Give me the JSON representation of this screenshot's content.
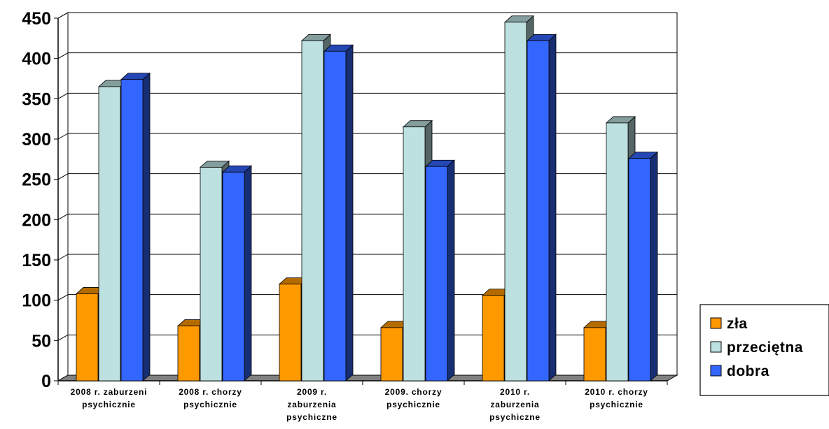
{
  "chart_data": {
    "type": "bar",
    "title": "",
    "xlabel": "",
    "ylabel": "",
    "ylim": [
      0,
      450
    ],
    "y_ticks": [
      "0",
      "50",
      "100",
      "150",
      "200",
      "250",
      "300",
      "350",
      "400",
      "450"
    ],
    "grid": true,
    "three_d": true,
    "legend_position": "right",
    "categories": [
      [
        "2008 r. zaburzeni",
        "psychicznie"
      ],
      [
        "2008 r. chorzy",
        "psychicznie"
      ],
      [
        "2009 r.",
        "zaburzenia",
        "psychiczne"
      ],
      [
        "2009.  chorzy",
        "psychicznie"
      ],
      [
        "2010 r.",
        "zaburzenia",
        "psychiczne"
      ],
      [
        "2010 r. chorzy",
        "psychicznie"
      ]
    ],
    "series": [
      {
        "name": "zła",
        "color": "#ff9900",
        "values": [
          108,
          68,
          120,
          66,
          106,
          66
        ]
      },
      {
        "name": "przeciętna",
        "color": "#bde0e0",
        "values": [
          365,
          265,
          422,
          315,
          445,
          320
        ]
      },
      {
        "name": "dobra",
        "color": "#3366ff",
        "values": [
          374,
          259,
          409,
          266,
          422,
          276
        ]
      }
    ]
  }
}
